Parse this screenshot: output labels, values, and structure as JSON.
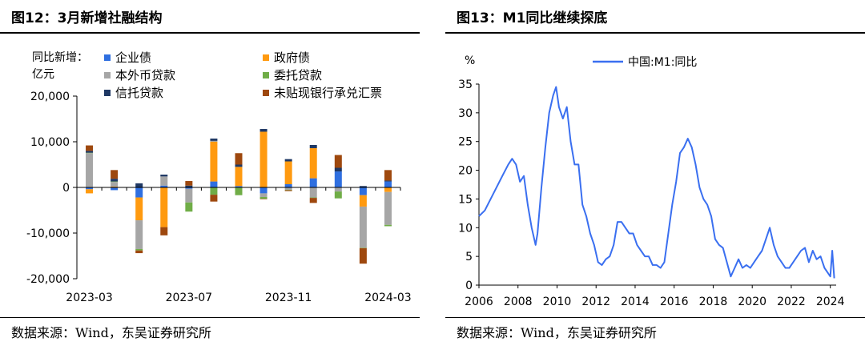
{
  "left": {
    "title": "图12：3月新增社融结构",
    "unit_label_line1": "同比新增：",
    "unit_label_line2": "亿元",
    "source": "数据来源：Wind，东吴证券研究所"
  },
  "right": {
    "title": "图13：M1同比继续探底",
    "unit_label": "%",
    "source": "数据来源：Wind，东吴证券研究所"
  },
  "colors": {
    "企业债": "#2f6fe0",
    "政府债": "#ff9a10",
    "本外币贷款": "#a6a6a6",
    "委托贷款": "#70ad47",
    "信托贷款": "#1f3864",
    "未贴现银行承兑汇票": "#9e480e",
    "m1_line": "#3a6ff0"
  },
  "chart_data": [
    {
      "type": "bar",
      "stacked": true,
      "categories": [
        "2023-03",
        "2023-04",
        "2023-05",
        "2023-06",
        "2023-07",
        "2023-08",
        "2023-09",
        "2023-10",
        "2023-11",
        "2023-12",
        "2024-01",
        "2024-02",
        "2024-03"
      ],
      "tick_labels": [
        "2023-03",
        "2023-07",
        "2023-11",
        "2024-03"
      ],
      "ylim": [
        -20000,
        20000
      ],
      "yticks": [
        -20000,
        -10000,
        0,
        10000,
        20000
      ],
      "ytick_labels": [
        "-20,000",
        "-10,000",
        "0",
        "10,000",
        "20,000"
      ],
      "legend_position": "top",
      "series": [
        {
          "name": "企业债",
          "values": [
            -400,
            -600,
            -2200,
            400,
            -300,
            1300,
            300,
            -1300,
            700,
            2000,
            3500,
            -1700,
            1300
          ]
        },
        {
          "name": "政府债",
          "values": [
            -900,
            200,
            -5000,
            -8700,
            0,
            8700,
            4200,
            12200,
            5000,
            6600,
            -100,
            -2500,
            -1000
          ]
        },
        {
          "name": "本外币贷款",
          "values": [
            7500,
            1000,
            -6300,
            2000,
            -3000,
            200,
            -100,
            -800,
            -500,
            -2200,
            -800,
            -9000,
            -7200
          ]
        },
        {
          "name": "委托贷款",
          "values": [
            100,
            100,
            -300,
            0,
            -2000,
            -1600,
            -1600,
            -400,
            -100,
            -100,
            -1500,
            -100,
            -300
          ]
        },
        {
          "name": "信托贷款",
          "values": [
            400,
            600,
            900,
            400,
            400,
            500,
            500,
            600,
            500,
            700,
            800,
            300,
            200
          ]
        },
        {
          "name": "未贴现银行承兑汇票",
          "values": [
            1200,
            1900,
            -600,
            -1800,
            1000,
            -1500,
            2500,
            -100,
            -200,
            -1100,
            2800,
            -3400,
            2300
          ]
        }
      ]
    },
    {
      "type": "line",
      "xlim": [
        2006,
        2024.3
      ],
      "ylim": [
        0,
        35
      ],
      "xticks": [
        2006,
        2008,
        2010,
        2012,
        2014,
        2016,
        2018,
        2020,
        2022,
        2024
      ],
      "yticks": [
        0,
        5,
        10,
        15,
        20,
        25,
        30,
        35
      ],
      "legend_position": "top",
      "series": [
        {
          "name": "中国:M1:同比",
          "x": [
            2006.0,
            2006.3,
            2006.6,
            2006.9,
            2007.2,
            2007.5,
            2007.7,
            2007.9,
            2008.1,
            2008.3,
            2008.5,
            2008.7,
            2008.9,
            2009.0,
            2009.2,
            2009.4,
            2009.6,
            2009.8,
            2009.95,
            2010.1,
            2010.3,
            2010.5,
            2010.7,
            2010.9,
            2011.1,
            2011.3,
            2011.5,
            2011.7,
            2011.9,
            2012.1,
            2012.3,
            2012.5,
            2012.7,
            2012.9,
            2013.1,
            2013.3,
            2013.5,
            2013.7,
            2013.9,
            2014.1,
            2014.3,
            2014.5,
            2014.7,
            2014.9,
            2015.1,
            2015.3,
            2015.5,
            2015.7,
            2015.9,
            2016.1,
            2016.3,
            2016.5,
            2016.7,
            2016.9,
            2017.1,
            2017.3,
            2017.5,
            2017.7,
            2017.9,
            2018.1,
            2018.3,
            2018.5,
            2018.7,
            2018.9,
            2019.1,
            2019.3,
            2019.5,
            2019.7,
            2019.9,
            2020.1,
            2020.3,
            2020.5,
            2020.7,
            2020.9,
            2021.1,
            2021.3,
            2021.5,
            2021.7,
            2021.9,
            2022.1,
            2022.3,
            2022.5,
            2022.7,
            2022.9,
            2023.1,
            2023.3,
            2023.5,
            2023.7,
            2023.9,
            2024.0,
            2024.1,
            2024.2
          ],
          "values": [
            12,
            13,
            15,
            17,
            19,
            21,
            22,
            21,
            18,
            19,
            14,
            10,
            7,
            9,
            17,
            24,
            30,
            33,
            34.5,
            31,
            29,
            31,
            25,
            21,
            21,
            14,
            12,
            9,
            7,
            4,
            3.5,
            4.5,
            5,
            7,
            11,
            11,
            10,
            9,
            9,
            7,
            6,
            5,
            5,
            3.5,
            3.5,
            3,
            4,
            9,
            14,
            18,
            23,
            24,
            25.5,
            24,
            21,
            17,
            15,
            14,
            12,
            8,
            7,
            6.5,
            4,
            1.5,
            3,
            4.5,
            3,
            3.5,
            3,
            4,
            5,
            6,
            8,
            10,
            7,
            5,
            4,
            3,
            3,
            4,
            5,
            6,
            6.5,
            4,
            6,
            4.5,
            5,
            3,
            2,
            1.5,
            6,
            1.2
          ]
        }
      ]
    }
  ]
}
